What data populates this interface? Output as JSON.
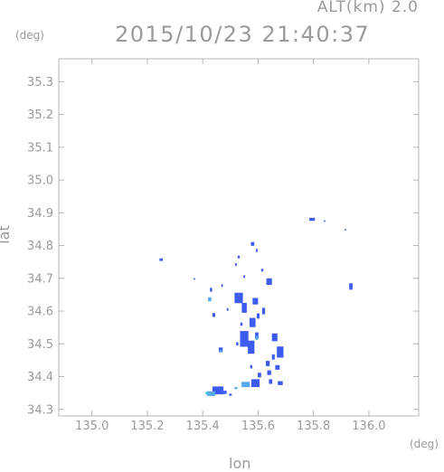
{
  "header": {
    "altitude": "ALT(km)  2.0",
    "timestamp": "2015/10/23 21:40:37"
  },
  "axes": {
    "y_unit": "(deg)",
    "x_unit": "(deg)",
    "x_title": "lon",
    "y_title": "lat"
  },
  "chart_data": {
    "type": "heatmap",
    "xlim": [
      134.88,
      136.18
    ],
    "ylim": [
      34.28,
      35.37
    ],
    "x_ticks": [
      135.0,
      135.2,
      135.4,
      135.6,
      135.8,
      136.0
    ],
    "x_tick_labels": [
      "135.0",
      "135.2",
      "135.4",
      "135.6",
      "135.8",
      "136.0"
    ],
    "y_ticks": [
      34.3,
      34.4,
      34.5,
      34.6,
      34.7,
      34.8,
      34.9,
      35.0,
      35.1,
      35.2,
      35.3
    ],
    "y_tick_labels": [
      "34.3",
      "34.4",
      "34.5",
      "34.6",
      "34.7",
      "34.8",
      "34.9",
      "35.0",
      "35.1",
      "35.2",
      "35.3"
    ],
    "grid": false,
    "colors": {
      "blue": "#3e5bef",
      "light_blue": "#58a8ee",
      "cyan": "#3fc8e6"
    },
    "points": [
      {
        "lon": 135.25,
        "lat": 34.757,
        "w": 0.012,
        "h": 0.008,
        "c": "blue"
      },
      {
        "lon": 135.37,
        "lat": 34.698,
        "w": 0.006,
        "h": 0.004,
        "c": "blue"
      },
      {
        "lon": 135.795,
        "lat": 34.88,
        "w": 0.02,
        "h": 0.009,
        "c": "blue"
      },
      {
        "lon": 135.84,
        "lat": 34.875,
        "w": 0.006,
        "h": 0.004,
        "c": "blue"
      },
      {
        "lon": 135.915,
        "lat": 34.848,
        "w": 0.006,
        "h": 0.004,
        "c": "blue"
      },
      {
        "lon": 135.935,
        "lat": 34.675,
        "w": 0.012,
        "h": 0.02,
        "c": "blue"
      },
      {
        "lon": 135.58,
        "lat": 34.805,
        "w": 0.012,
        "h": 0.012,
        "c": "blue"
      },
      {
        "lon": 135.595,
        "lat": 34.785,
        "w": 0.006,
        "h": 0.01,
        "c": "blue"
      },
      {
        "lon": 135.53,
        "lat": 34.765,
        "w": 0.008,
        "h": 0.008,
        "c": "blue"
      },
      {
        "lon": 135.52,
        "lat": 34.742,
        "w": 0.006,
        "h": 0.008,
        "c": "blue"
      },
      {
        "lon": 135.615,
        "lat": 34.725,
        "w": 0.008,
        "h": 0.008,
        "c": "blue"
      },
      {
        "lon": 135.64,
        "lat": 34.69,
        "w": 0.02,
        "h": 0.02,
        "c": "blue"
      },
      {
        "lon": 135.55,
        "lat": 34.705,
        "w": 0.006,
        "h": 0.008,
        "c": "blue"
      },
      {
        "lon": 135.47,
        "lat": 34.678,
        "w": 0.006,
        "h": 0.008,
        "c": "blue"
      },
      {
        "lon": 135.43,
        "lat": 34.665,
        "w": 0.008,
        "h": 0.012,
        "c": "blue"
      },
      {
        "lon": 135.425,
        "lat": 34.636,
        "w": 0.012,
        "h": 0.012,
        "c": "light_blue"
      },
      {
        "lon": 135.53,
        "lat": 34.64,
        "w": 0.03,
        "h": 0.032,
        "c": "blue"
      },
      {
        "lon": 135.55,
        "lat": 34.61,
        "w": 0.018,
        "h": 0.03,
        "c": "blue"
      },
      {
        "lon": 135.59,
        "lat": 34.63,
        "w": 0.02,
        "h": 0.02,
        "c": "blue"
      },
      {
        "lon": 135.62,
        "lat": 34.6,
        "w": 0.01,
        "h": 0.02,
        "c": "blue"
      },
      {
        "lon": 135.44,
        "lat": 34.588,
        "w": 0.01,
        "h": 0.012,
        "c": "blue"
      },
      {
        "lon": 135.49,
        "lat": 34.605,
        "w": 0.006,
        "h": 0.008,
        "c": "blue"
      },
      {
        "lon": 135.58,
        "lat": 34.565,
        "w": 0.022,
        "h": 0.028,
        "c": "blue"
      },
      {
        "lon": 135.6,
        "lat": 34.585,
        "w": 0.01,
        "h": 0.016,
        "c": "blue"
      },
      {
        "lon": 135.54,
        "lat": 34.56,
        "w": 0.008,
        "h": 0.01,
        "c": "blue"
      },
      {
        "lon": 135.55,
        "lat": 34.515,
        "w": 0.03,
        "h": 0.048,
        "c": "blue"
      },
      {
        "lon": 135.575,
        "lat": 34.49,
        "w": 0.024,
        "h": 0.04,
        "c": "blue"
      },
      {
        "lon": 135.595,
        "lat": 34.525,
        "w": 0.012,
        "h": 0.02,
        "c": "blue"
      },
      {
        "lon": 135.595,
        "lat": 34.518,
        "w": 0.008,
        "h": 0.012,
        "c": "light_blue"
      },
      {
        "lon": 135.525,
        "lat": 34.5,
        "w": 0.008,
        "h": 0.01,
        "c": "blue"
      },
      {
        "lon": 135.66,
        "lat": 34.52,
        "w": 0.02,
        "h": 0.024,
        "c": "blue"
      },
      {
        "lon": 135.68,
        "lat": 34.475,
        "w": 0.024,
        "h": 0.034,
        "c": "blue"
      },
      {
        "lon": 135.655,
        "lat": 34.46,
        "w": 0.01,
        "h": 0.016,
        "c": "blue"
      },
      {
        "lon": 135.635,
        "lat": 34.44,
        "w": 0.014,
        "h": 0.016,
        "c": "blue"
      },
      {
        "lon": 135.67,
        "lat": 34.428,
        "w": 0.016,
        "h": 0.014,
        "c": "blue"
      },
      {
        "lon": 135.64,
        "lat": 34.412,
        "w": 0.014,
        "h": 0.014,
        "c": "blue"
      },
      {
        "lon": 135.605,
        "lat": 34.405,
        "w": 0.012,
        "h": 0.014,
        "c": "blue"
      },
      {
        "lon": 135.575,
        "lat": 34.43,
        "w": 0.008,
        "h": 0.01,
        "c": "blue"
      },
      {
        "lon": 135.68,
        "lat": 34.38,
        "w": 0.018,
        "h": 0.012,
        "c": "blue"
      },
      {
        "lon": 135.645,
        "lat": 34.385,
        "w": 0.012,
        "h": 0.014,
        "c": "blue"
      },
      {
        "lon": 135.59,
        "lat": 34.38,
        "w": 0.03,
        "h": 0.024,
        "c": "blue"
      },
      {
        "lon": 135.555,
        "lat": 34.376,
        "w": 0.03,
        "h": 0.016,
        "c": "light_blue"
      },
      {
        "lon": 135.52,
        "lat": 34.365,
        "w": 0.01,
        "h": 0.006,
        "c": "light_blue"
      },
      {
        "lon": 135.465,
        "lat": 34.482,
        "w": 0.014,
        "h": 0.014,
        "c": "blue"
      },
      {
        "lon": 135.465,
        "lat": 34.478,
        "w": 0.008,
        "h": 0.008,
        "c": "light_blue"
      },
      {
        "lon": 135.455,
        "lat": 34.358,
        "w": 0.04,
        "h": 0.024,
        "c": "blue"
      },
      {
        "lon": 135.43,
        "lat": 34.348,
        "w": 0.03,
        "h": 0.014,
        "c": "light_blue"
      },
      {
        "lon": 135.415,
        "lat": 34.35,
        "w": 0.01,
        "h": 0.008,
        "c": "cyan"
      },
      {
        "lon": 135.48,
        "lat": 34.352,
        "w": 0.012,
        "h": 0.01,
        "c": "blue"
      },
      {
        "lon": 135.5,
        "lat": 34.345,
        "w": 0.01,
        "h": 0.006,
        "c": "blue"
      }
    ]
  }
}
